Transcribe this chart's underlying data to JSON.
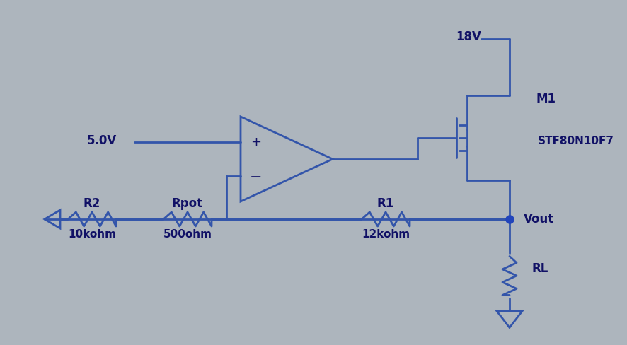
{
  "bg_color": "#adb5bd",
  "line_color": "#3355aa",
  "line_width": 2.0,
  "dot_color": "#2244bb",
  "text_color": "#111166",
  "labels": {
    "r2": "R2",
    "r2_val": "10kohm",
    "rpot": "Rpot",
    "rpot_val": "500ohm",
    "r1": "R1",
    "r1_val": "12kohm",
    "rl": "RL",
    "vout": "Vout",
    "v5": "5.0V",
    "v18": "18V",
    "m1": "M1",
    "mosfet": "STF80N10F7",
    "plus": "+",
    "minus": "−"
  },
  "font_size_label": 12,
  "font_size_val": 11
}
